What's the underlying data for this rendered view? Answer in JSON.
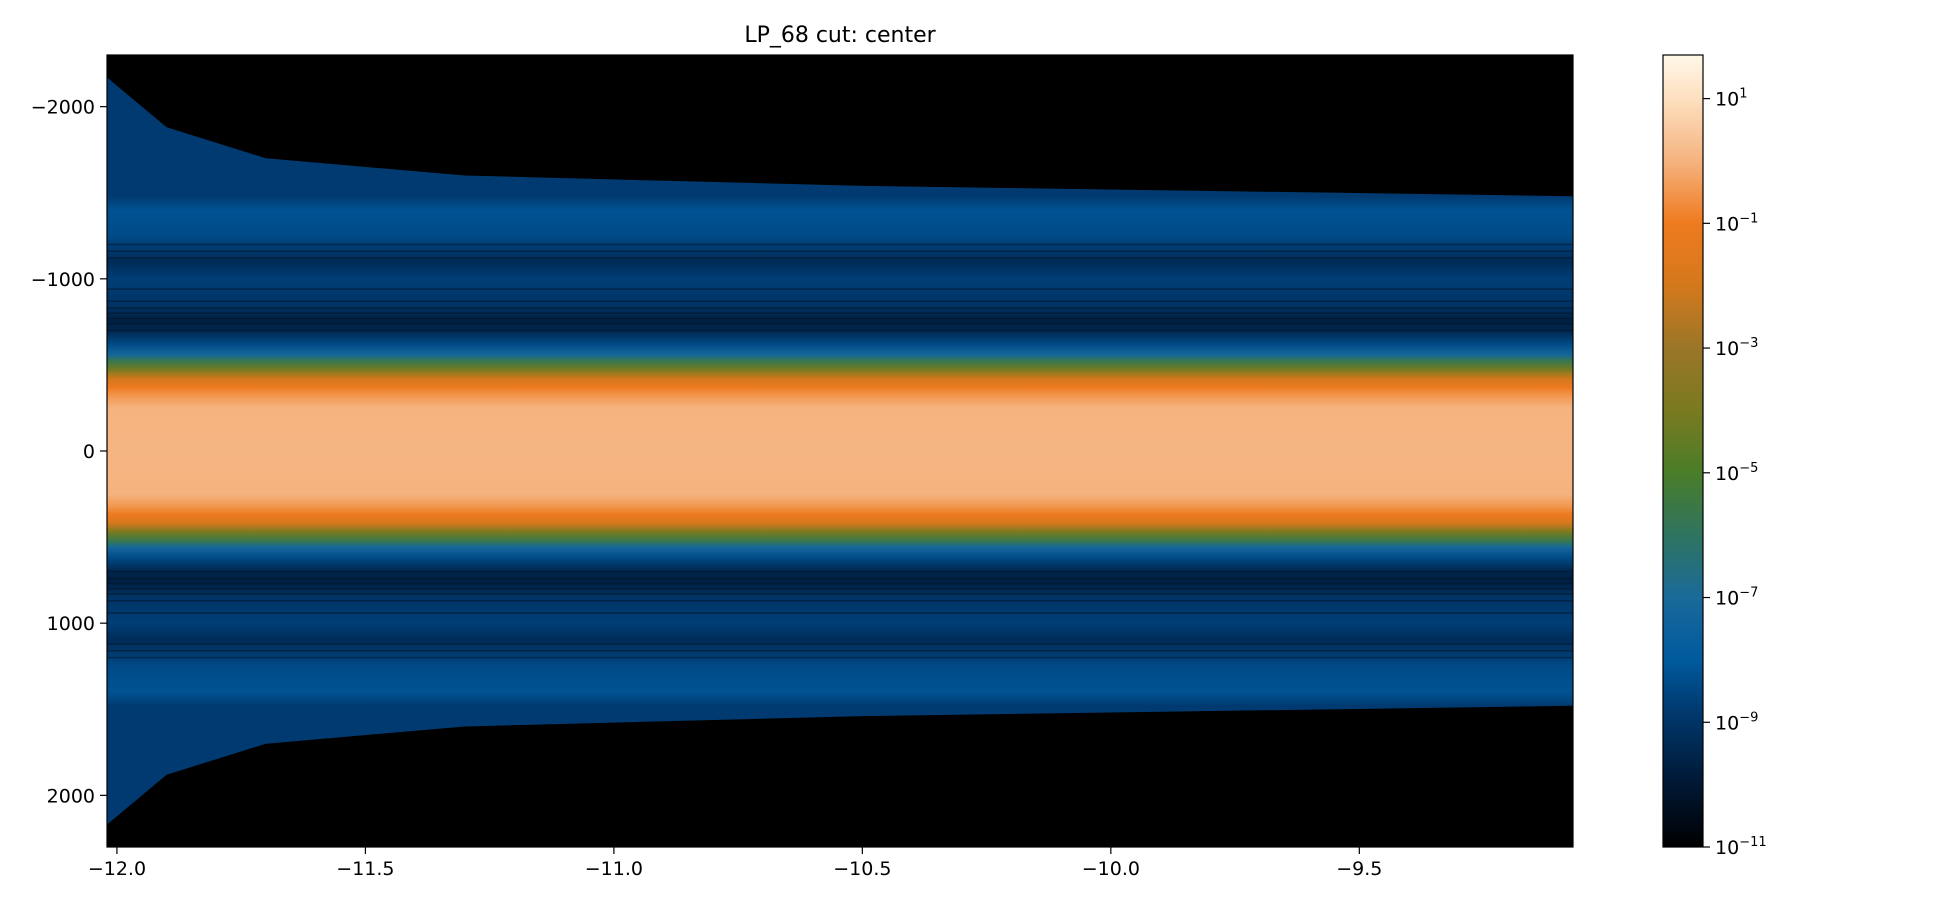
{
  "chart_data": {
    "type": "heatmap",
    "title": "LP_68 cut: center",
    "xlabel": "",
    "ylabel": "",
    "xlim": [
      -12.02,
      -9.07
    ],
    "ylim": [
      2300,
      -2300
    ],
    "x_ticks": [
      -12.0,
      -11.5,
      -11.0,
      -10.5,
      -10.0,
      -9.5
    ],
    "x_tick_labels": [
      "−12.0",
      "−11.5",
      "−11.0",
      "−10.5",
      "−10.0",
      "−9.5"
    ],
    "y_ticks": [
      -2000,
      -1000,
      0,
      1000,
      2000
    ],
    "y_tick_labels": [
      "−2000",
      "−1000",
      "0",
      "1000",
      "2000"
    ],
    "grid": false,
    "colorscale": "log",
    "colorbar": {
      "range": [
        1e-11,
        50
      ],
      "ticks": [
        {
          "exp": 1,
          "base": "10",
          "sup": "1"
        },
        {
          "exp": -1,
          "base": "10",
          "sup": "−1"
        },
        {
          "exp": -3,
          "base": "10",
          "sup": "−3"
        },
        {
          "exp": -5,
          "base": "10",
          "sup": "−5"
        },
        {
          "exp": -7,
          "base": "10",
          "sup": "−7"
        },
        {
          "exp": -9,
          "base": "10",
          "sup": "−9"
        },
        {
          "exp": -11,
          "base": "10",
          "sup": "−11"
        }
      ],
      "colors": [
        {
          "log10": -11,
          "hex": "#000000"
        },
        {
          "log10": -9.9,
          "hex": "#001a38"
        },
        {
          "log10": -8.8,
          "hex": "#003a70"
        },
        {
          "log10": -8.0,
          "hex": "#005a9e"
        },
        {
          "log10": -7.0,
          "hex": "#1a6a9a"
        },
        {
          "log10": -6.0,
          "hex": "#2f7460"
        },
        {
          "log10": -5.0,
          "hex": "#4a7d28"
        },
        {
          "log10": -4.0,
          "hex": "#7a7a20"
        },
        {
          "log10": -3.0,
          "hex": "#9a7628"
        },
        {
          "log10": -2.0,
          "hex": "#d4781c"
        },
        {
          "log10": -1.0,
          "hex": "#ef7a1f"
        },
        {
          "log10": 0.0,
          "hex": "#f5b37f"
        },
        {
          "log10": 1.0,
          "hex": "#fde0c0"
        },
        {
          "log10": 1.7,
          "hex": "#fff8e8"
        }
      ]
    },
    "intensity_profile_vs_y": [
      {
        "y": 0,
        "log10": 0.05
      },
      {
        "y": 250,
        "log10": 0.0
      },
      {
        "y": 320,
        "log10": -0.5
      },
      {
        "y": 370,
        "log10": -1.1
      },
      {
        "y": 420,
        "log10": -2.0
      },
      {
        "y": 470,
        "log10": -4.0
      },
      {
        "y": 520,
        "log10": -5.6
      },
      {
        "y": 560,
        "log10": -7.2
      },
      {
        "y": 620,
        "log10": -8.4
      },
      {
        "y": 700,
        "log10": -9.5
      },
      {
        "y": 760,
        "log10": -9.7
      },
      {
        "y": 850,
        "log10": -9.0
      },
      {
        "y": 1000,
        "log10": -8.7
      },
      {
        "y": 1100,
        "log10": -9.3
      },
      {
        "y": 1250,
        "log10": -8.4
      },
      {
        "y": 1400,
        "log10": -8.2
      },
      {
        "y": 1480,
        "log10": -8.8
      }
    ],
    "dark_lines_y": [
      700,
      740,
      770,
      800,
      830,
      870,
      940,
      1120,
      1160,
      1200
    ],
    "envelope_edge": [
      {
        "x": -12.02,
        "y": 2170
      },
      {
        "x": -11.9,
        "y": 1880
      },
      {
        "x": -11.7,
        "y": 1700
      },
      {
        "x": -11.3,
        "y": 1600
      },
      {
        "x": -10.5,
        "y": 1540
      },
      {
        "x": -9.07,
        "y": 1480
      }
    ],
    "legend": "none"
  }
}
